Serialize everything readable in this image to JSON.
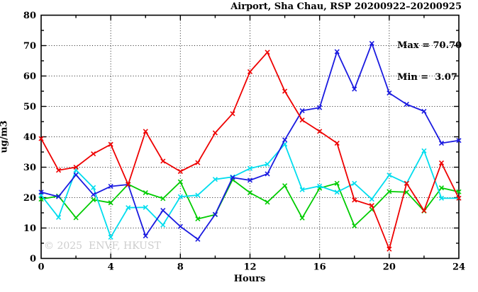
{
  "chart": {
    "title": "Airport, Sha Chau, RSP 20200922–20200925",
    "ylabel": "ug/m3",
    "xlabel": "Hours",
    "watermark": "© 2025  ENVF, HKUST",
    "stats": {
      "max_label": "Max = 70.70",
      "min_label": "Min =  3.07"
    }
  },
  "chart_data": {
    "type": "line",
    "title": "Airport, Sha Chau, RSP 20200922–20200925",
    "xlabel": "Hours",
    "ylabel": "ug/m3",
    "xlim": [
      0,
      24
    ],
    "ylim": [
      0,
      80
    ],
    "x": [
      0,
      1,
      2,
      3,
      4,
      5,
      6,
      7,
      8,
      9,
      10,
      11,
      12,
      13,
      14,
      15,
      16,
      17,
      18,
      19,
      20,
      21,
      22,
      23,
      24
    ],
    "x_major_ticks": [
      0,
      4,
      8,
      12,
      16,
      20,
      24
    ],
    "x_minor_ticks": [
      2,
      6,
      10,
      14,
      18,
      22
    ],
    "y_major_ticks": [
      0,
      10,
      20,
      30,
      40,
      50,
      60,
      70,
      80
    ],
    "y_minor_ticks": [
      5,
      15,
      25,
      35,
      45,
      55,
      65,
      75
    ],
    "grid_x": [
      4,
      8,
      12,
      16,
      20
    ],
    "grid_y": [
      10,
      20,
      30,
      40,
      50,
      60,
      70
    ],
    "legend_position": "none",
    "stats": {
      "max": 70.7,
      "min": 3.07
    },
    "series": [
      {
        "name": "series-green",
        "color": "#00cc00",
        "values": [
          19.5,
          20.5,
          13.4,
          19.3,
          18.3,
          24.4,
          21.6,
          19.7,
          25.2,
          13.0,
          14.4,
          25.9,
          21.6,
          18.5,
          23.9,
          13.3,
          23.1,
          24.7,
          10.7,
          16.1,
          22.0,
          21.8,
          15.6,
          23.2,
          21.9
        ]
      },
      {
        "name": "series-cyan",
        "color": "#00ddee",
        "values": [
          20.8,
          13.5,
          29.1,
          23.3,
          7.0,
          16.7,
          16.8,
          11.0,
          20.3,
          20.8,
          26.0,
          26.8,
          29.6,
          31.0,
          37.6,
          22.6,
          23.8,
          21.8,
          24.7,
          19.5,
          27.4,
          24.7,
          35.4,
          19.8,
          19.8
        ]
      },
      {
        "name": "series-blue",
        "color": "#1a1ae0",
        "values": [
          21.8,
          20.3,
          27.5,
          21.0,
          23.7,
          24.3,
          7.4,
          15.8,
          10.5,
          6.3,
          14.5,
          26.6,
          25.7,
          27.8,
          39.0,
          48.6,
          49.6,
          68.0,
          55.7,
          70.7,
          54.4,
          50.7,
          48.4,
          37.9,
          38.8
        ]
      },
      {
        "name": "series-red",
        "color": "#ee0000",
        "values": [
          39.4,
          29.0,
          30.0,
          34.4,
          37.5,
          24.3,
          41.8,
          32.0,
          28.6,
          31.5,
          41.3,
          47.6,
          61.4,
          67.8,
          55.0,
          45.5,
          41.8,
          37.9,
          19.2,
          17.4,
          3.07,
          24.7,
          15.7,
          31.4,
          19.8
        ]
      }
    ]
  }
}
